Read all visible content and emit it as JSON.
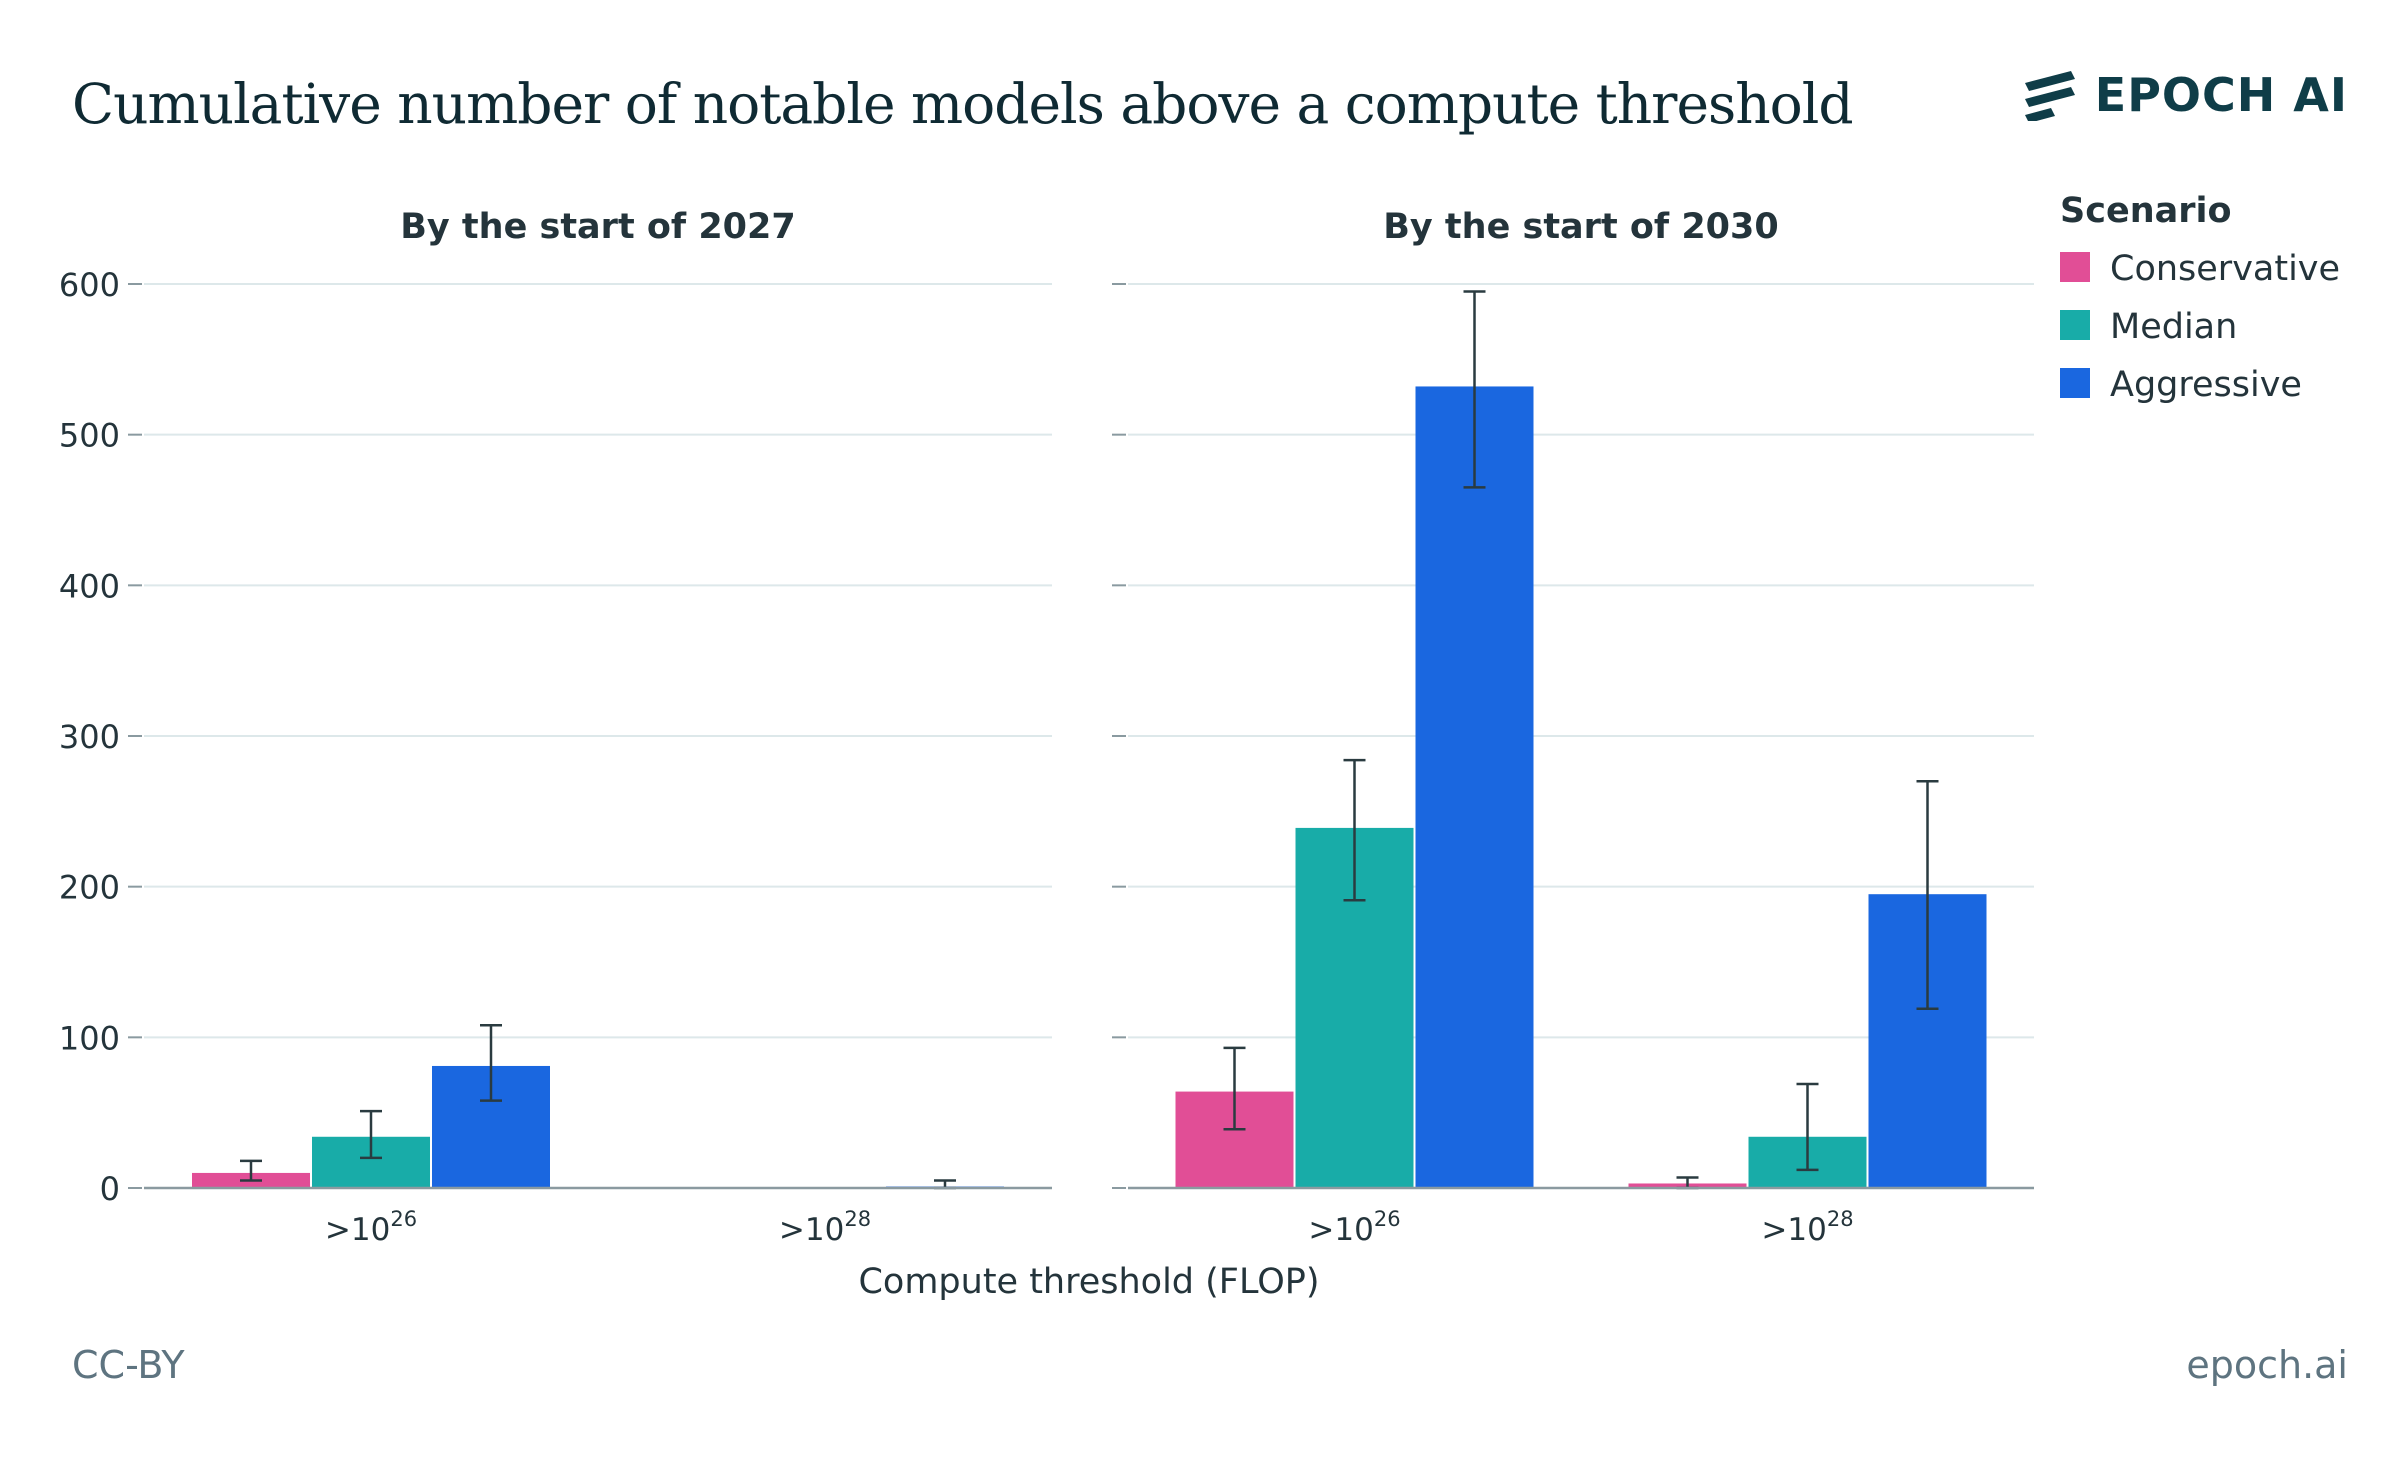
{
  "header": {
    "title": "Cumulative number of notable models above a compute threshold",
    "brand": "EPOCH AI"
  },
  "footer": {
    "license": "CC-BY",
    "site": "epoch.ai"
  },
  "colors": {
    "Conservative": "#e14e96",
    "Median": "#18aca8",
    "Aggressive": "#1a67e0",
    "grid": "#dde8ea",
    "axis": "#8a9aa0",
    "errorbar": "#2a3b40"
  },
  "chart_data": {
    "type": "bar",
    "xlabel": "Compute threshold (FLOP)",
    "ylabel": "",
    "ylim": [
      0,
      600
    ],
    "yticks": [
      0,
      100,
      200,
      300,
      400,
      500,
      600
    ],
    "grid": true,
    "legend": {
      "title": "Scenario",
      "placement": "right",
      "entries": [
        "Conservative",
        "Median",
        "Aggressive"
      ]
    },
    "categories": [
      {
        "base": ">10",
        "exp": "26"
      },
      {
        "base": ">10",
        "exp": "28"
      }
    ],
    "panels": [
      {
        "title": "By the start of 2027",
        "series": [
          {
            "name": "Conservative",
            "values": [
              10,
              0
            ],
            "err_low": [
              5,
              0
            ],
            "err_high": [
              18,
              0
            ]
          },
          {
            "name": "Median",
            "values": [
              34,
              0
            ],
            "err_low": [
              20,
              0
            ],
            "err_high": [
              51,
              0
            ]
          },
          {
            "name": "Aggressive",
            "values": [
              81,
              1
            ],
            "err_low": [
              58,
              0
            ],
            "err_high": [
              108,
              5
            ]
          }
        ]
      },
      {
        "title": "By the start of 2030",
        "series": [
          {
            "name": "Conservative",
            "values": [
              64,
              3
            ],
            "err_low": [
              39,
              0
            ],
            "err_high": [
              93,
              7
            ]
          },
          {
            "name": "Median",
            "values": [
              239,
              34
            ],
            "err_low": [
              191,
              12
            ],
            "err_high": [
              284,
              69
            ]
          },
          {
            "name": "Aggressive",
            "values": [
              532,
              195
            ],
            "err_low": [
              465,
              119
            ],
            "err_high": [
              595,
              270
            ]
          }
        ]
      }
    ]
  }
}
